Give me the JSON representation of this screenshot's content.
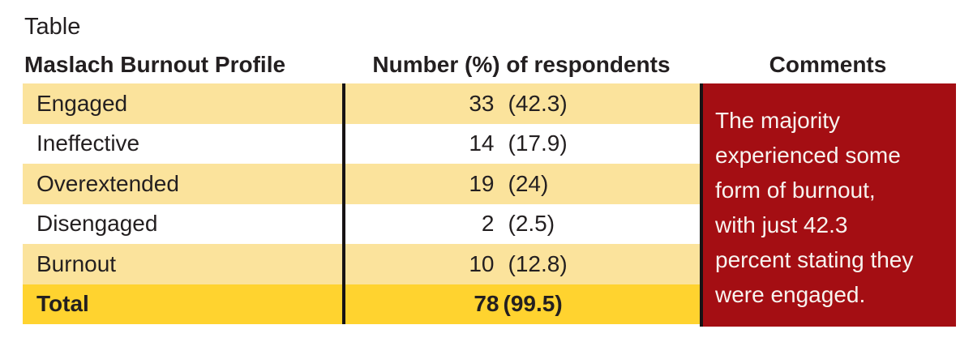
{
  "figure": {
    "title": "Table"
  },
  "colors": {
    "row-yellow": "#FBE39C",
    "row-white": "#FFFFFF",
    "total-gold": "#FFD32F",
    "comment-red": "#A40E13",
    "text-dark": "#231F20",
    "divider": "#171314",
    "comment-text": "#F7F3EF"
  },
  "table": {
    "headers": [
      "Maslach Burnout Profile",
      "Number (%) of respondents",
      "Comments"
    ],
    "rows": [
      {
        "label": "Engaged",
        "count": "33",
        "pct": "(42.3)"
      },
      {
        "label": "Ineffective",
        "count": "14",
        "pct": "(17.9)"
      },
      {
        "label": "Overextended",
        "count": "19",
        "pct": "(24)"
      },
      {
        "label": "Disengaged",
        "count": "2",
        "pct": "(2.5)"
      },
      {
        "label": "Burnout",
        "count": "10",
        "pct": "(12.8)"
      },
      {
        "label": "Total",
        "count": "78",
        "pct": "(99.5)"
      }
    ],
    "comments": {
      "text": "The majority experienced some form of burnout, with just 42.3 percent stating they were engaged.",
      "lines": [
        "The majority",
        "experienced some",
        "form of burnout,",
        "with just 42.3",
        "percent stating they",
        "were engaged."
      ]
    }
  },
  "chart_data": {
    "type": "table",
    "title": "Table",
    "columns": [
      "Maslach Burnout Profile",
      "Number (%) of respondents",
      "Comments"
    ],
    "categories": [
      "Engaged",
      "Ineffective",
      "Overextended",
      "Disengaged",
      "Burnout"
    ],
    "counts": [
      33,
      14,
      19,
      2,
      10
    ],
    "percents": [
      42.3,
      17.9,
      24,
      2.5,
      12.8
    ],
    "total_count": 78,
    "total_percent": 99.5,
    "comment": "The majority experienced some form of burnout, with just 42.3 percent stating they were engaged."
  }
}
